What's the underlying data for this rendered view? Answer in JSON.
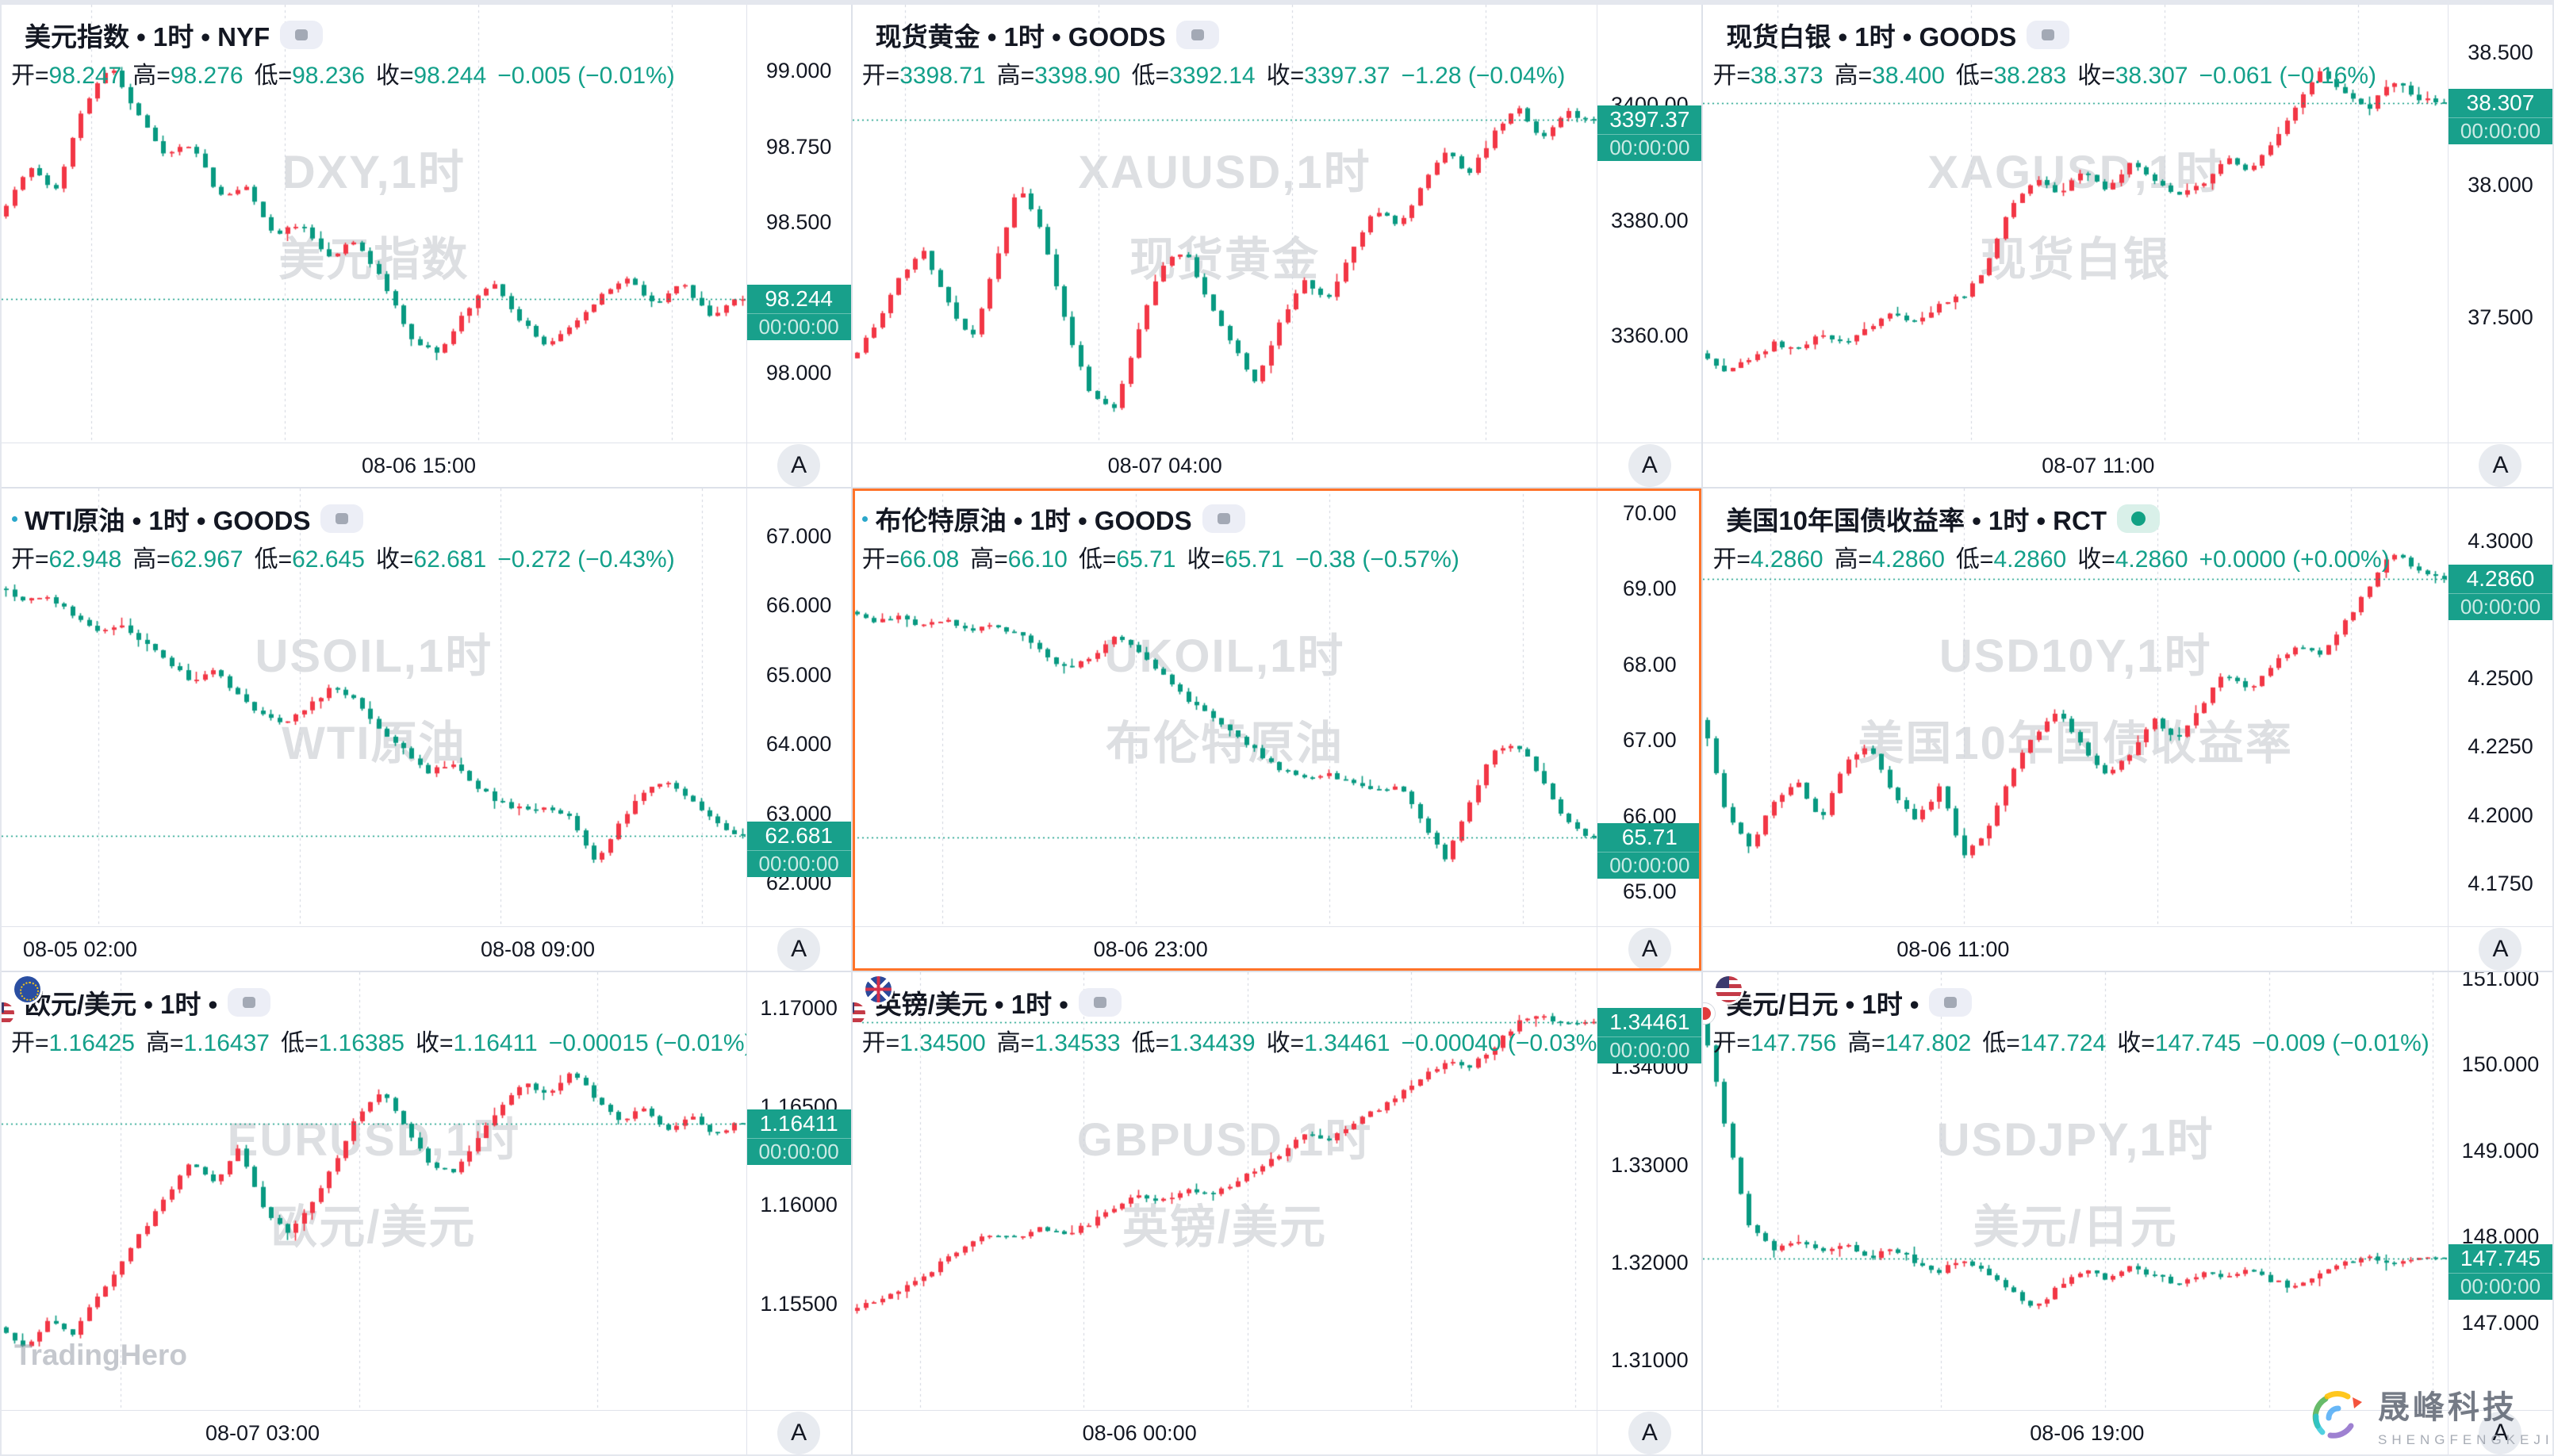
{
  "app": {
    "auto_scale_label": "A",
    "brand_watermark": "TradingHero",
    "logo_cn": "晟峰科技",
    "logo_en": "SHENGFENGKEJI"
  },
  "colors": {
    "up_candle": "#F23645",
    "down_candle": "#089981",
    "value_text": "#13A08A",
    "badge_bg": "#18A08B",
    "selected_border": "#FF7329",
    "grid_line": "#CFD3DC",
    "axis_text": "#131722"
  },
  "panels": [
    {
      "id": "dxy",
      "icon": "us",
      "toggle": "square",
      "selected": false,
      "title": "美元指数 • 1时 • NYF",
      "ohlc": {
        "o_label": "开=",
        "o": "98.247",
        "h_label": "高=",
        "h": "98.276",
        "l_label": "低=",
        "l": "98.236",
        "c_label": "收=",
        "c": "98.244",
        "change": "−0.005 (−0.01%)"
      },
      "badge": {
        "price": "98.244",
        "time": "00:00:00"
      }
    },
    {
      "id": "xauusd",
      "icon": "gold",
      "toggle": "square",
      "selected": false,
      "title": "现货黄金 • 1时 • GOODS",
      "ohlc": {
        "o_label": "开=",
        "o": "3398.71",
        "h_label": "高=",
        "h": "3398.90",
        "l_label": "低=",
        "l": "3392.14",
        "c_label": "收=",
        "c": "3397.37",
        "change": "−1.28 (−0.04%)"
      },
      "badge": {
        "price": "3397.37",
        "time": "00:00:00"
      }
    },
    {
      "id": "xagusd",
      "icon": "silver",
      "toggle": "square",
      "selected": false,
      "title": "现货白银 • 1时 • GOODS",
      "ohlc": {
        "o_label": "开=",
        "o": "38.373",
        "h_label": "高=",
        "h": "38.400",
        "l_label": "低=",
        "l": "38.283",
        "c_label": "收=",
        "c": "38.307",
        "change": "−0.061 (−0.16%)"
      },
      "badge": {
        "price": "38.307",
        "time": "00:00:00"
      }
    },
    {
      "id": "usoil",
      "icon": "oil",
      "toggle": "square",
      "selected": false,
      "title": "WTI原油 • 1时 • GOODS",
      "ohlc": {
        "o_label": "开=",
        "o": "62.948",
        "h_label": "高=",
        "h": "62.967",
        "l_label": "低=",
        "l": "62.645",
        "c_label": "收=",
        "c": "62.681",
        "change": "−0.272 (−0.43%)"
      },
      "badge": {
        "price": "62.681",
        "time": "00:00:00"
      }
    },
    {
      "id": "ukoil",
      "icon": "oil",
      "toggle": "square",
      "selected": true,
      "title": "布伦特原油 • 1时 • GOODS",
      "ohlc": {
        "o_label": "开=",
        "o": "66.08",
        "h_label": "高=",
        "h": "66.10",
        "l_label": "低=",
        "l": "65.71",
        "c_label": "收=",
        "c": "65.71",
        "change": "−0.38 (−0.57%)"
      },
      "badge": {
        "price": "65.71",
        "time": "00:00:00"
      }
    },
    {
      "id": "us10y",
      "icon": "us",
      "toggle": "dot",
      "selected": false,
      "title": "美国10年国债收益率 • 1时 • RCT",
      "ohlc": {
        "o_label": "开=",
        "o": "4.2860",
        "h_label": "高=",
        "h": "4.2860",
        "l_label": "低=",
        "l": "4.2860",
        "c_label": "收=",
        "c": "4.2860",
        "change": "+0.0000 (+0.00%)"
      },
      "badge": {
        "price": "4.2860",
        "time": "00:00:00"
      }
    },
    {
      "id": "eurusd",
      "icon": "eur-usd",
      "toggle": "square",
      "selected": false,
      "title": "欧元/美元 • 1时 •",
      "ohlc": {
        "o_label": "开=",
        "o": "1.16425",
        "h_label": "高=",
        "h": "1.16437",
        "l_label": "低=",
        "l": "1.16385",
        "c_label": "收=",
        "c": "1.16411",
        "change": "−0.00015 (−0.01%)"
      },
      "badge": {
        "price": "1.16411",
        "time": "00:00:00"
      }
    },
    {
      "id": "gbpusd",
      "icon": "gbp-usd",
      "toggle": "square",
      "selected": false,
      "title": "英镑/美元 • 1时 •",
      "ohlc": {
        "o_label": "开=",
        "o": "1.34500",
        "h_label": "高=",
        "h": "1.34533",
        "l_label": "低=",
        "l": "1.34439",
        "c_label": "收=",
        "c": "1.34461",
        "change": "−0.00040 (−0.03%)"
      },
      "badge": {
        "price": "1.34461",
        "time": "00:00:00"
      }
    },
    {
      "id": "usdjpy",
      "icon": "usd-jpy",
      "toggle": "square",
      "selected": false,
      "title": "美元/日元 • 1时 •",
      "ohlc": {
        "o_label": "开=",
        "o": "147.756",
        "h_label": "高=",
        "h": "147.802",
        "l_label": "低=",
        "l": "147.724",
        "c_label": "收=",
        "c": "147.745",
        "change": "−0.009 (−0.01%)"
      },
      "badge": {
        "price": "147.745",
        "time": "00:00:00"
      }
    }
  ],
  "chart_data": [
    {
      "type": "candlestick",
      "symbol": "DXY",
      "watermark": [
        "DXY,1时",
        "美元指数"
      ],
      "ohlc": {
        "open": 98.247,
        "high": 98.276,
        "low": 98.236,
        "close": 98.244,
        "change": -0.005,
        "change_pct": -0.01
      },
      "y_max": 99.219,
      "y_min": 97.77,
      "close": 98.244,
      "seed": 7,
      "ticks": [
        {
          "label": "99.000",
          "value": 99.0
        },
        {
          "label": "98.750",
          "value": 98.75
        },
        {
          "label": "98.500",
          "value": 98.5
        },
        {
          "label": "98.000",
          "value": 98.0
        }
      ],
      "grid_x": [
        0.12,
        0.38,
        0.64,
        0.9
      ],
      "time_labels": [
        {
          "text": "08-06 15:00",
          "x": 0.56
        }
      ],
      "price_path": [
        98.52,
        98.68,
        98.6,
        98.88,
        99.02,
        98.86,
        98.72,
        98.76,
        98.58,
        98.62,
        98.45,
        98.5,
        98.38,
        98.44,
        98.3,
        98.12,
        98.06,
        98.2,
        98.3,
        98.18,
        98.08,
        98.16,
        98.26,
        98.32,
        98.22,
        98.3,
        98.18,
        98.244
      ]
    },
    {
      "type": "candlestick",
      "symbol": "XAUUSD",
      "watermark": [
        "XAUUSD,1时",
        "现货黄金"
      ],
      "ohlc": {
        "open": 3398.71,
        "high": 3398.9,
        "low": 3392.14,
        "close": 3397.37,
        "change": -1.28,
        "change_pct": -0.04
      },
      "y_max": 3417.4,
      "y_min": 3341.4,
      "close": 3397.37,
      "seed": 13,
      "ticks": [
        {
          "label": "3400.00",
          "value": 3400
        },
        {
          "label": "3380.00",
          "value": 3380
        },
        {
          "label": "3360.00",
          "value": 3360
        }
      ],
      "grid_x": [
        0.07,
        0.33,
        0.59,
        0.85
      ],
      "time_labels": [
        {
          "text": "08-07 04:00",
          "x": 0.42
        }
      ],
      "price_path": [
        3356,
        3362,
        3370,
        3375,
        3366,
        3359,
        3372,
        3386,
        3378,
        3362,
        3350,
        3347,
        3360,
        3372,
        3375,
        3366,
        3358,
        3352,
        3362,
        3370,
        3366,
        3374,
        3382,
        3379,
        3386,
        3392,
        3388,
        3395,
        3400,
        3394,
        3399,
        3397.37
      ]
    },
    {
      "type": "candlestick",
      "symbol": "XAGUSD",
      "watermark": [
        "XAGUSD,1时",
        "现货白银"
      ],
      "ohlc": {
        "open": 38.373,
        "high": 38.4,
        "low": 38.283,
        "close": 38.307,
        "change": -0.061,
        "change_pct": -0.16
      },
      "y_max": 38.679,
      "y_min": 37.027,
      "close": 38.307,
      "seed": 21,
      "ticks": [
        {
          "label": "38.500",
          "value": 38.5
        },
        {
          "label": "38.000",
          "value": 38.0
        },
        {
          "label": "37.500",
          "value": 37.5
        }
      ],
      "grid_x": [
        0.1,
        0.36,
        0.62,
        0.88
      ],
      "time_labels": [
        {
          "text": "08-07 11:00",
          "x": 0.53
        }
      ],
      "price_path": [
        37.36,
        37.3,
        37.34,
        37.4,
        37.38,
        37.44,
        37.4,
        37.46,
        37.52,
        37.48,
        37.55,
        37.58,
        37.7,
        37.92,
        38.02,
        37.96,
        38.05,
        37.98,
        38.08,
        38.02,
        37.95,
        38.0,
        38.1,
        38.05,
        38.15,
        38.3,
        38.42,
        38.35,
        38.28,
        38.4,
        38.33,
        38.307
      ]
    },
    {
      "type": "candlestick",
      "symbol": "USOIL",
      "watermark": [
        "USOIL,1时",
        "WTI原油"
      ],
      "ohlc": {
        "open": 62.948,
        "high": 62.967,
        "low": 62.645,
        "close": 62.681,
        "change": -0.272,
        "change_pct": -0.43
      },
      "y_max": 67.682,
      "y_min": 61.375,
      "close": 62.681,
      "seed": 5,
      "ticks": [
        {
          "label": "67.000",
          "value": 67
        },
        {
          "label": "66.000",
          "value": 66
        },
        {
          "label": "65.000",
          "value": 65
        },
        {
          "label": "64.000",
          "value": 64
        },
        {
          "label": "63.000",
          "value": 63
        },
        {
          "label": "62.000",
          "value": 62
        }
      ],
      "grid_x": [
        0.13,
        0.4,
        0.67,
        0.94
      ],
      "time_labels": [
        {
          "text": "08-05 02:00",
          "x": 0.105
        },
        {
          "text": "08-08 09:00",
          "x": 0.72
        }
      ],
      "price_path": [
        66.25,
        66.05,
        66.15,
        65.85,
        65.6,
        65.75,
        65.45,
        65.2,
        64.9,
        65.05,
        64.7,
        64.4,
        64.3,
        64.55,
        64.85,
        64.6,
        64.2,
        63.9,
        63.6,
        63.75,
        63.4,
        63.15,
        63.05,
        63.1,
        62.95,
        62.3,
        62.85,
        63.3,
        63.45,
        63.2,
        62.9,
        62.681
      ]
    },
    {
      "type": "candlestick",
      "symbol": "UKOIL",
      "watermark": [
        "UKOIL,1时",
        "布伦特原油"
      ],
      "ohlc": {
        "open": 66.08,
        "high": 66.1,
        "low": 65.71,
        "close": 65.71,
        "change": -0.38,
        "change_pct": -0.57
      },
      "y_max": 70.323,
      "y_min": 64.542,
      "close": 65.71,
      "seed": 9,
      "ticks": [
        {
          "label": "70.00",
          "value": 70
        },
        {
          "label": "69.00",
          "value": 69
        },
        {
          "label": "68.00",
          "value": 68
        },
        {
          "label": "67.00",
          "value": 67
        },
        {
          "label": "66.00",
          "value": 66
        },
        {
          "label": "65.00",
          "value": 65
        }
      ],
      "grid_x": [
        0.12,
        0.38,
        0.64,
        0.9
      ],
      "time_labels": [
        {
          "text": "08-06 23:00",
          "x": 0.4
        }
      ],
      "price_path": [
        68.7,
        68.55,
        68.62,
        68.5,
        68.58,
        68.45,
        68.52,
        68.4,
        68.15,
        67.95,
        68.1,
        68.35,
        68.2,
        67.9,
        67.55,
        67.35,
        67.1,
        66.85,
        66.6,
        66.5,
        66.55,
        66.45,
        66.35,
        66.4,
        65.95,
        65.4,
        66.2,
        66.85,
        66.95,
        66.5,
        65.95,
        65.71
      ]
    },
    {
      "type": "candlestick",
      "symbol": "USD10Y",
      "watermark": [
        "USD10Y,1时",
        "美国10年国债收益率"
      ],
      "ohlc": {
        "open": 4.286,
        "high": 4.286,
        "low": 4.286,
        "close": 4.286,
        "change": 0.0,
        "change_pct": 0.0
      },
      "y_max": 4.319,
      "y_min": 4.1595,
      "close": 4.286,
      "seed": 3,
      "ticks": [
        {
          "label": "4.3000",
          "value": 4.3
        },
        {
          "label": "4.2500",
          "value": 4.25
        },
        {
          "label": "4.2250",
          "value": 4.225
        },
        {
          "label": "4.2000",
          "value": 4.2
        },
        {
          "label": "4.1750",
          "value": 4.175
        }
      ],
      "grid_x": [
        0.09,
        0.35,
        0.61,
        0.87
      ],
      "time_labels": [
        {
          "text": "08-06 11:00",
          "x": 0.335
        }
      ],
      "price_path": [
        4.235,
        4.2,
        4.188,
        4.205,
        4.212,
        4.198,
        4.22,
        4.225,
        4.208,
        4.198,
        4.21,
        4.185,
        4.195,
        4.215,
        4.23,
        4.238,
        4.225,
        4.215,
        4.222,
        4.235,
        4.228,
        4.24,
        4.252,
        4.245,
        4.255,
        4.262,
        4.258,
        4.27,
        4.282,
        4.296,
        4.29,
        4.286
      ]
    },
    {
      "type": "candlestick",
      "symbol": "EURUSD",
      "watermark": [
        "EURUSD,1时",
        "欧元/美元"
      ],
      "ohlc": {
        "open": 1.16425,
        "high": 1.16437,
        "low": 1.16385,
        "close": 1.16411,
        "change": -0.00015,
        "change_pct": -0.01
      },
      "y_max": 1.1718,
      "y_min": 1.1496,
      "close": 1.16411,
      "seed": 11,
      "ticks": [
        {
          "label": "1.17000",
          "value": 1.17
        },
        {
          "label": "1.16500",
          "value": 1.165
        },
        {
          "label": "1.16000",
          "value": 1.16
        },
        {
          "label": "1.15500",
          "value": 1.155
        }
      ],
      "grid_x": [
        0.16,
        0.48,
        0.8
      ],
      "time_labels": [
        {
          "text": "08-07 03:00",
          "x": 0.35
        }
      ],
      "price_path": [
        1.1538,
        1.1528,
        1.1542,
        1.1535,
        1.1552,
        1.157,
        1.1588,
        1.1605,
        1.1622,
        1.1612,
        1.1628,
        1.16,
        1.1585,
        1.1598,
        1.162,
        1.1645,
        1.1658,
        1.164,
        1.1622,
        1.1615,
        1.1632,
        1.165,
        1.1662,
        1.1655,
        1.1668,
        1.1655,
        1.1642,
        1.165,
        1.1638,
        1.1645,
        1.1635,
        1.16411
      ]
    },
    {
      "type": "candlestick",
      "symbol": "GBPUSD",
      "watermark": [
        "GBPUSD,1时",
        "英镑/美元"
      ],
      "ohlc": {
        "open": 1.345,
        "high": 1.34533,
        "low": 1.34439,
        "close": 1.34461,
        "change": -0.0004,
        "change_pct": -0.03
      },
      "y_max": 1.34968,
      "y_min": 1.30492,
      "close": 1.34461,
      "seed": 17,
      "ticks": [
        {
          "label": "1.34000",
          "value": 1.34
        },
        {
          "label": "1.33000",
          "value": 1.33
        },
        {
          "label": "1.32000",
          "value": 1.32
        },
        {
          "label": "1.31000",
          "value": 1.31
        }
      ],
      "grid_x": [
        0.09,
        0.31,
        0.53,
        0.75,
        0.97
      ],
      "time_labels": [
        {
          "text": "08-06 00:00",
          "x": 0.385
        }
      ],
      "price_path": [
        1.315,
        1.3162,
        1.317,
        1.3185,
        1.3205,
        1.3222,
        1.323,
        1.3225,
        1.3235,
        1.3228,
        1.324,
        1.3255,
        1.327,
        1.3262,
        1.3275,
        1.3268,
        1.328,
        1.3295,
        1.331,
        1.333,
        1.3325,
        1.334,
        1.3355,
        1.337,
        1.339,
        1.3405,
        1.34,
        1.342,
        1.3445,
        1.3455,
        1.3442,
        1.34461
      ]
    },
    {
      "type": "candlestick",
      "symbol": "USDJPY",
      "watermark": [
        "USDJPY,1时",
        "美元/日元"
      ],
      "ohlc": {
        "open": 147.756,
        "high": 147.802,
        "low": 147.724,
        "close": 147.745,
        "change": -0.009,
        "change_pct": -0.01
      },
      "y_max": 151.073,
      "y_min": 145.981,
      "close": 147.745,
      "seed": 2,
      "ticks": [
        {
          "label": "151.000",
          "value": 151
        },
        {
          "label": "150.000",
          "value": 150
        },
        {
          "label": "149.000",
          "value": 149
        },
        {
          "label": "148.000",
          "value": 148
        },
        {
          "label": "147.000",
          "value": 147
        }
      ],
      "grid_x": [
        0.1,
        0.32,
        0.54,
        0.76,
        0.98
      ],
      "time_labels": [
        {
          "text": "08-06 19:00",
          "x": 0.515
        }
      ],
      "price_path": [
        150.55,
        149.2,
        148.1,
        147.85,
        147.95,
        147.8,
        147.9,
        147.75,
        147.85,
        147.7,
        147.6,
        147.72,
        147.55,
        147.35,
        147.15,
        147.42,
        147.6,
        147.52,
        147.65,
        147.55,
        147.45,
        147.58,
        147.5,
        147.62,
        147.48,
        147.4,
        147.55,
        147.68,
        147.78,
        147.7,
        147.76,
        147.745
      ]
    }
  ]
}
